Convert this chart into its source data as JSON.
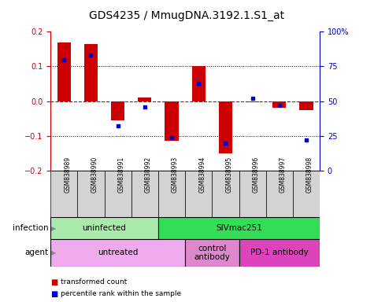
{
  "title": "GDS4235 / MmugDNA.3192.1.S1_at",
  "samples": [
    "GSM838989",
    "GSM838990",
    "GSM838991",
    "GSM838992",
    "GSM838993",
    "GSM838994",
    "GSM838995",
    "GSM838996",
    "GSM838997",
    "GSM838998"
  ],
  "transformed_count": [
    0.17,
    0.165,
    -0.055,
    0.01,
    -0.115,
    0.1,
    -0.15,
    -0.003,
    -0.018,
    -0.025
  ],
  "percentile_rank": [
    80,
    83,
    32,
    46,
    24,
    63,
    20,
    52,
    47,
    22
  ],
  "bar_color": "#cc0000",
  "dot_color": "#0000cc",
  "ylim_left": [
    -0.2,
    0.2
  ],
  "ylim_right": [
    0,
    100
  ],
  "yticks_left": [
    -0.2,
    -0.1,
    0.0,
    0.1,
    0.2
  ],
  "yticks_right": [
    0,
    25,
    50,
    75,
    100
  ],
  "ytick_labels_right": [
    "0",
    "25",
    "50",
    "75",
    "100%"
  ],
  "infection_groups": [
    {
      "label": "uninfected",
      "start": 0,
      "end": 4,
      "color": "#aaeaaa"
    },
    {
      "label": "SIVmac251",
      "start": 4,
      "end": 10,
      "color": "#33dd55"
    }
  ],
  "agent_groups": [
    {
      "label": "untreated",
      "start": 0,
      "end": 5,
      "color": "#f0aaee"
    },
    {
      "label": "control\nantibody",
      "start": 5,
      "end": 7,
      "color": "#dd88cc"
    },
    {
      "label": "PD-1 antibody",
      "start": 7,
      "end": 10,
      "color": "#dd44bb"
    }
  ],
  "legend_labels": [
    "transformed count",
    "percentile rank within the sample"
  ],
  "legend_colors": [
    "#cc0000",
    "#0000cc"
  ],
  "title_fontsize": 10,
  "tick_fontsize": 7,
  "annot_fontsize": 7.5,
  "sample_fontsize": 5.5
}
